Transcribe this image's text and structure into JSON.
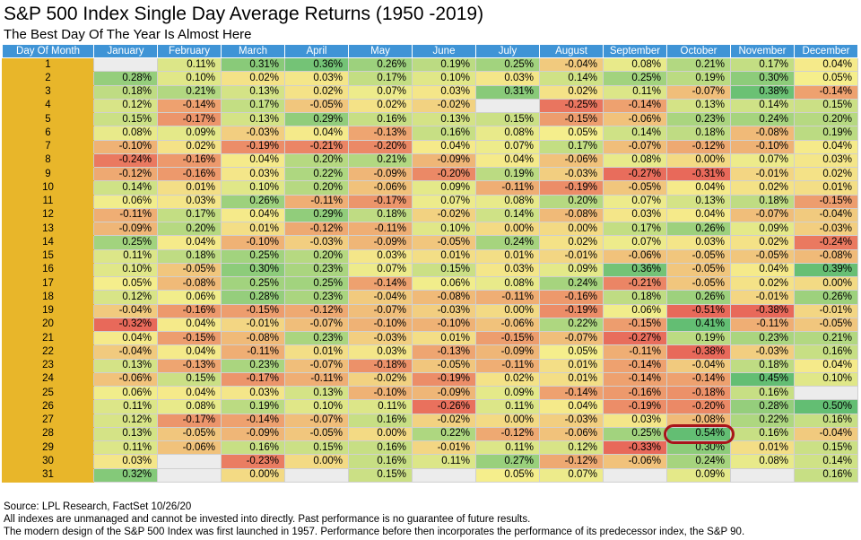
{
  "header": {
    "title": "S&P 500 Index Single Day Average Returns (1950 -2019)",
    "subtitle": "The Best Day Of The Year Is Almost Here"
  },
  "footer": {
    "source": "Source: LPL Research, FactSet 10/26/20",
    "note1": "All indexes are unmanaged and cannot be invested into directly. Past performance is no guarantee of future results.",
    "note2": "The modern design of the S&P 500 Index was first launched in 1957. Performance before then incorporates the performance of its predecessor index, the S&P 90."
  },
  "colors": {
    "header_bg": "#3f94d6",
    "day_bg": "#e8b62a",
    "blank_bg": "#ececec",
    "highlight_ring": "#a8141a",
    "scale": [
      "#e8695a",
      "#f5ee8c",
      "#63be73"
    ]
  },
  "chart_data": {
    "type": "table",
    "title": "S&P 500 Index Single Day Average Returns (1950 -2019)",
    "subtitle": "The Best Day Of The Year Is Almost Here",
    "row_header": "Day Of Month",
    "columns": [
      "January",
      "February",
      "March",
      "April",
      "May",
      "June",
      "July",
      "August",
      "September",
      "October",
      "November",
      "December"
    ],
    "highlight": {
      "day": 28,
      "month": "October"
    },
    "rows": [
      {
        "day": "1",
        "values": [
          "",
          "0.11%",
          "0.31%",
          "0.36%",
          "0.26%",
          "0.19%",
          "0.25%",
          "-0.04%",
          "0.08%",
          "0.21%",
          "0.17%",
          "0.04%"
        ]
      },
      {
        "day": "2",
        "values": [
          "0.28%",
          "0.10%",
          "0.02%",
          "0.03%",
          "0.17%",
          "0.10%",
          "0.03%",
          "0.14%",
          "0.25%",
          "0.19%",
          "0.30%",
          "0.05%"
        ]
      },
      {
        "day": "3",
        "values": [
          "0.18%",
          "0.21%",
          "0.13%",
          "0.02%",
          "0.07%",
          "0.03%",
          "0.31%",
          "0.02%",
          "0.11%",
          "-0.07%",
          "0.38%",
          "-0.14%"
        ]
      },
      {
        "day": "4",
        "values": [
          "0.12%",
          "-0.14%",
          "0.17%",
          "-0.05%",
          "0.02%",
          "-0.02%",
          "",
          "-0.25%",
          "-0.14%",
          "0.13%",
          "0.14%",
          "0.15%"
        ]
      },
      {
        "day": "5",
        "values": [
          "0.15%",
          "-0.17%",
          "0.13%",
          "0.29%",
          "0.16%",
          "0.13%",
          "0.15%",
          "-0.15%",
          "-0.06%",
          "0.23%",
          "0.24%",
          "0.20%"
        ]
      },
      {
        "day": "6",
        "values": [
          "0.08%",
          "0.09%",
          "-0.03%",
          "0.04%",
          "-0.13%",
          "0.16%",
          "0.08%",
          "0.05%",
          "0.14%",
          "0.18%",
          "-0.08%",
          "0.19%"
        ]
      },
      {
        "day": "7",
        "values": [
          "-0.10%",
          "0.02%",
          "-0.19%",
          "-0.21%",
          "-0.20%",
          "0.04%",
          "0.07%",
          "0.17%",
          "-0.07%",
          "-0.12%",
          "-0.10%",
          "0.04%"
        ]
      },
      {
        "day": "8",
        "values": [
          "-0.24%",
          "-0.16%",
          "0.04%",
          "0.20%",
          "0.21%",
          "-0.09%",
          "0.04%",
          "-0.06%",
          "0.08%",
          "0.00%",
          "0.07%",
          "0.03%"
        ]
      },
      {
        "day": "9",
        "values": [
          "-0.12%",
          "-0.16%",
          "0.03%",
          "0.22%",
          "-0.09%",
          "-0.20%",
          "0.19%",
          "-0.03%",
          "-0.27%",
          "-0.31%",
          "-0.01%",
          "0.02%"
        ]
      },
      {
        "day": "10",
        "values": [
          "0.14%",
          "0.01%",
          "0.10%",
          "0.20%",
          "-0.06%",
          "0.09%",
          "-0.11%",
          "-0.19%",
          "-0.05%",
          "0.04%",
          "0.02%",
          "0.01%"
        ]
      },
      {
        "day": "11",
        "values": [
          "0.06%",
          "0.03%",
          "0.26%",
          "-0.11%",
          "-0.17%",
          "0.07%",
          "0.08%",
          "0.20%",
          "0.07%",
          "0.13%",
          "0.18%",
          "-0.15%"
        ]
      },
      {
        "day": "12",
        "values": [
          "-0.11%",
          "0.17%",
          "0.04%",
          "0.29%",
          "0.18%",
          "-0.02%",
          "0.14%",
          "-0.08%",
          "0.03%",
          "0.04%",
          "-0.07%",
          "-0.04%"
        ]
      },
      {
        "day": "13",
        "values": [
          "-0.09%",
          "0.20%",
          "0.01%",
          "-0.12%",
          "-0.11%",
          "0.10%",
          "0.00%",
          "0.00%",
          "0.17%",
          "0.26%",
          "0.09%",
          "-0.03%"
        ]
      },
      {
        "day": "14",
        "values": [
          "0.25%",
          "0.04%",
          "-0.10%",
          "-0.03%",
          "-0.09%",
          "-0.05%",
          "0.24%",
          "0.02%",
          "0.07%",
          "0.03%",
          "0.02%",
          "-0.24%"
        ]
      },
      {
        "day": "15",
        "values": [
          "0.11%",
          "0.18%",
          "0.25%",
          "0.20%",
          "0.03%",
          "0.01%",
          "0.01%",
          "-0.01%",
          "-0.06%",
          "-0.05%",
          "-0.05%",
          "-0.08%"
        ]
      },
      {
        "day": "16",
        "values": [
          "0.10%",
          "-0.05%",
          "0.30%",
          "0.23%",
          "0.07%",
          "0.15%",
          "0.03%",
          "0.09%",
          "0.36%",
          "-0.05%",
          "0.04%",
          "0.39%"
        ]
      },
      {
        "day": "17",
        "values": [
          "0.05%",
          "-0.08%",
          "0.25%",
          "0.25%",
          "-0.14%",
          "0.06%",
          "0.08%",
          "0.24%",
          "-0.21%",
          "-0.05%",
          "0.02%",
          "0.00%"
        ]
      },
      {
        "day": "18",
        "values": [
          "0.12%",
          "0.06%",
          "0.28%",
          "0.23%",
          "-0.04%",
          "-0.08%",
          "-0.11%",
          "-0.16%",
          "0.18%",
          "0.26%",
          "-0.01%",
          "0.26%"
        ]
      },
      {
        "day": "19",
        "values": [
          "-0.04%",
          "-0.16%",
          "-0.15%",
          "-0.12%",
          "-0.07%",
          "-0.03%",
          "0.00%",
          "-0.19%",
          "0.06%",
          "-0.51%",
          "-0.38%",
          "-0.01%"
        ]
      },
      {
        "day": "20",
        "values": [
          "-0.32%",
          "0.04%",
          "-0.01%",
          "-0.07%",
          "-0.10%",
          "-0.10%",
          "-0.06%",
          "0.22%",
          "-0.15%",
          "0.41%",
          "-0.11%",
          "-0.05%"
        ]
      },
      {
        "day": "21",
        "values": [
          "0.04%",
          "-0.15%",
          "-0.08%",
          "0.23%",
          "-0.03%",
          "0.01%",
          "-0.15%",
          "-0.07%",
          "-0.27%",
          "0.19%",
          "0.23%",
          "0.21%"
        ]
      },
      {
        "day": "22",
        "values": [
          "-0.04%",
          "0.04%",
          "-0.11%",
          "0.01%",
          "0.03%",
          "-0.13%",
          "-0.09%",
          "0.05%",
          "-0.11%",
          "-0.38%",
          "-0.03%",
          "0.16%"
        ]
      },
      {
        "day": "23",
        "values": [
          "0.13%",
          "-0.13%",
          "0.23%",
          "-0.07%",
          "-0.18%",
          "-0.05%",
          "-0.11%",
          "0.01%",
          "-0.14%",
          "-0.04%",
          "0.18%",
          "0.04%"
        ]
      },
      {
        "day": "24",
        "values": [
          "-0.06%",
          "0.15%",
          "-0.17%",
          "-0.11%",
          "-0.02%",
          "-0.19%",
          "0.02%",
          "0.01%",
          "-0.14%",
          "-0.14%",
          "0.45%",
          "0.10%"
        ]
      },
      {
        "day": "25",
        "values": [
          "0.06%",
          "0.04%",
          "0.03%",
          "0.13%",
          "-0.10%",
          "-0.09%",
          "0.09%",
          "-0.14%",
          "-0.16%",
          "-0.18%",
          "0.16%",
          ""
        ]
      },
      {
        "day": "26",
        "values": [
          "0.11%",
          "0.08%",
          "0.19%",
          "0.10%",
          "0.11%",
          "-0.26%",
          "0.11%",
          "0.04%",
          "-0.19%",
          "-0.20%",
          "0.28%",
          "0.50%"
        ]
      },
      {
        "day": "27",
        "values": [
          "0.12%",
          "-0.17%",
          "-0.14%",
          "-0.07%",
          "0.16%",
          "-0.02%",
          "0.00%",
          "-0.03%",
          "0.03%",
          "-0.08%",
          "0.22%",
          "0.16%"
        ]
      },
      {
        "day": "28",
        "values": [
          "0.13%",
          "-0.05%",
          "-0.09%",
          "-0.05%",
          "0.00%",
          "0.22%",
          "-0.12%",
          "-0.06%",
          "0.25%",
          "0.54%",
          "0.16%",
          "-0.04%"
        ]
      },
      {
        "day": "29",
        "values": [
          "0.11%",
          "-0.06%",
          "0.16%",
          "0.15%",
          "0.16%",
          "-0.01%",
          "0.11%",
          "0.12%",
          "-0.33%",
          "0.30%",
          "0.01%",
          "0.15%"
        ]
      },
      {
        "day": "30",
        "values": [
          "0.03%",
          "",
          "-0.23%",
          "0.00%",
          "0.16%",
          "0.11%",
          "0.27%",
          "-0.12%",
          "-0.06%",
          "0.24%",
          "0.08%",
          "0.14%"
        ]
      },
      {
        "day": "31",
        "values": [
          "0.32%",
          "",
          "0.00%",
          "",
          "0.15%",
          "",
          "0.05%",
          "0.07%",
          "",
          "0.09%",
          "",
          "0.16%"
        ]
      }
    ]
  }
}
